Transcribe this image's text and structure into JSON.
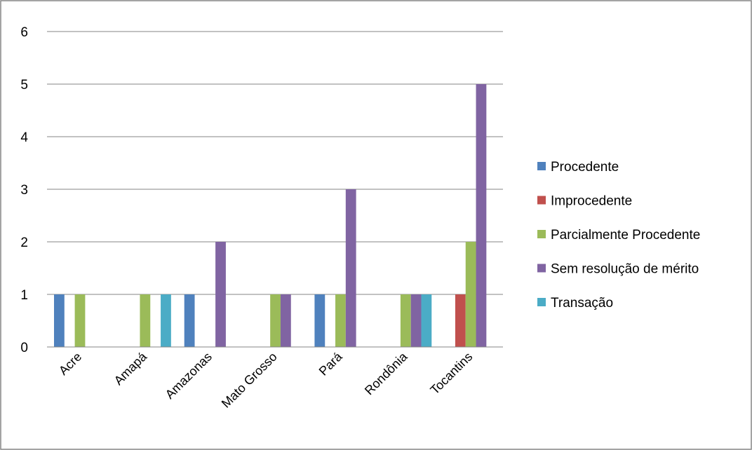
{
  "chart_data": {
    "type": "bar",
    "categories": [
      "Acre",
      "Amapá",
      "Amazonas",
      "Mato Grosso",
      "Pará",
      "Rondônia",
      "Tocantins"
    ],
    "series": [
      {
        "name": "Procedente",
        "color": "#4f81bd",
        "values": [
          1,
          0,
          1,
          0,
          1,
          0,
          0
        ]
      },
      {
        "name": "Improcedente",
        "color": "#c0504d",
        "values": [
          0,
          0,
          0,
          0,
          0,
          0,
          1
        ]
      },
      {
        "name": "Parcialmente Procedente",
        "color": "#9bbb59",
        "values": [
          1,
          1,
          0,
          1,
          1,
          1,
          2
        ]
      },
      {
        "name": "Sem resolução de mérito",
        "color": "#8064a2",
        "values": [
          0,
          0,
          2,
          1,
          3,
          1,
          5
        ]
      },
      {
        "name": "Transação",
        "color": "#4bacc6",
        "values": [
          0,
          1,
          0,
          0,
          0,
          1,
          0
        ]
      }
    ],
    "y_ticks": [
      "0",
      "1",
      "2",
      "3",
      "4",
      "5",
      "6"
    ],
    "ylim": [
      0,
      6
    ],
    "grid": true,
    "legend_position": "right",
    "title": "",
    "xlabel": "",
    "ylabel": ""
  }
}
